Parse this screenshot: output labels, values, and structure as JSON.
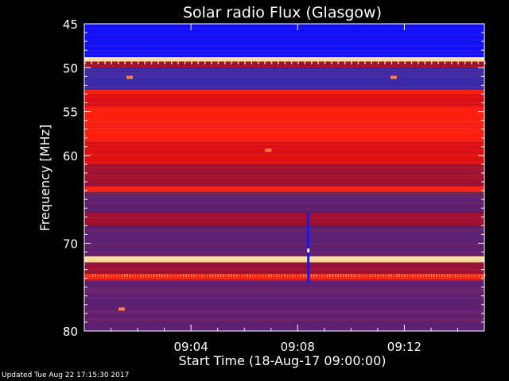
{
  "chart_data": {
    "type": "heatmap",
    "title": "Solar radio Flux (Glasgow)",
    "xlabel": "Start Time (18-Aug-17 09:00:00)",
    "ylabel": "Frequency [MHz]",
    "x_unit": "minutes after 09:00",
    "xlim": [
      0,
      15
    ],
    "ylim": [
      45,
      80
    ],
    "y_inverted": true,
    "x_ticks": [
      {
        "value": 4,
        "label": "09:04"
      },
      {
        "value": 8,
        "label": "09:08"
      },
      {
        "value": 12,
        "label": "09:12"
      }
    ],
    "y_ticks": [
      {
        "value": 45,
        "label": "45"
      },
      {
        "value": 50,
        "label": "50"
      },
      {
        "value": 55,
        "label": "55"
      },
      {
        "value": 60,
        "label": "60"
      },
      {
        "value": 70,
        "label": "70"
      },
      {
        "value": 80,
        "label": "80"
      }
    ],
    "colormap": [
      "#0000b0",
      "#1010ff",
      "#3a2aa8",
      "#602070",
      "#a01030",
      "#e01010",
      "#ff2010",
      "#ff8040",
      "#ffe0a0"
    ],
    "frequency_bands": [
      {
        "from": 45,
        "to": 47,
        "level": 0.1
      },
      {
        "from": 47,
        "to": 48.8,
        "level": 0.15
      },
      {
        "from": 48.8,
        "to": 49.3,
        "level": 1.0
      },
      {
        "from": 49.3,
        "to": 50,
        "level": 0.55
      },
      {
        "from": 50,
        "to": 52.5,
        "level": 0.2
      },
      {
        "from": 52.5,
        "to": 53,
        "level": 0.75
      },
      {
        "from": 53,
        "to": 54.5,
        "level": 0.6
      },
      {
        "from": 54.5,
        "to": 56,
        "level": 0.8
      },
      {
        "from": 56,
        "to": 58.5,
        "level": 0.7
      },
      {
        "from": 58.5,
        "to": 61,
        "level": 0.6
      },
      {
        "from": 61,
        "to": 63.5,
        "level": 0.5
      },
      {
        "from": 63.5,
        "to": 64.2,
        "level": 0.75
      },
      {
        "from": 64.2,
        "to": 66.5,
        "level": 0.4
      },
      {
        "from": 66.5,
        "to": 68,
        "level": 0.5
      },
      {
        "from": 68,
        "to": 71.5,
        "level": 0.4
      },
      {
        "from": 71.5,
        "to": 72.2,
        "level": 1.0
      },
      {
        "from": 72.2,
        "to": 73.5,
        "level": 0.45
      },
      {
        "from": 73.5,
        "to": 74.2,
        "level": 0.8
      },
      {
        "from": 74.2,
        "to": 80,
        "level": 0.35
      }
    ],
    "features": [
      {
        "type": "burst",
        "time": 8.4,
        "freq_from": 66.5,
        "freq_to": 74.5,
        "level": 0.05
      },
      {
        "type": "spot",
        "time": 6.9,
        "freq": 59.4,
        "level": 0.9
      },
      {
        "type": "spot",
        "time": 1.7,
        "freq": 51.1,
        "level": 0.85
      },
      {
        "type": "spot",
        "time": 11.6,
        "freq": 51.1,
        "level": 0.85
      },
      {
        "type": "spot",
        "time": 1.4,
        "freq": 77.5,
        "level": 0.85
      }
    ]
  },
  "footer": {
    "updated": "Updated Tue Aug 22 17:15:30 2017"
  }
}
